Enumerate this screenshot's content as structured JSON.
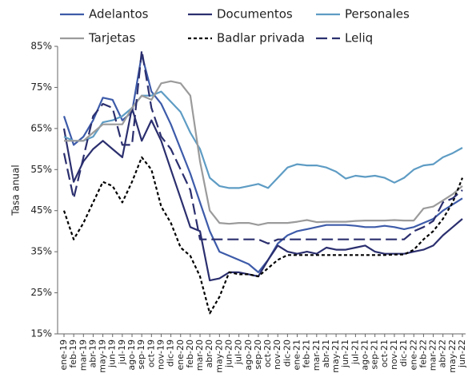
{
  "chart_data": {
    "type": "line",
    "y_label": "Tasa anual",
    "categories": [
      "ene-19",
      "feb-19",
      "mar-19",
      "abr-19",
      "may-19",
      "jun-19",
      "jul-19",
      "ago-19",
      "sep-19",
      "oct-19",
      "nov-19",
      "dic-19",
      "ene-20",
      "feb-20",
      "mar-20",
      "abr-20",
      "may-20",
      "jun-20",
      "jul-20",
      "ago-20",
      "sep-20",
      "oct-20",
      "nov-20",
      "dic-20",
      "ene-21",
      "feb-21",
      "mar-21",
      "abr-21",
      "may-21",
      "jun-21",
      "jul-21",
      "ago-21",
      "sep-21",
      "oct-21",
      "nov-21",
      "dic-21",
      "ene-22",
      "feb-22",
      "mar-22",
      "abr-22",
      "may-22",
      "jun-22"
    ],
    "series": [
      {
        "name": "Adelantos",
        "color": "#3d5ba9",
        "dash": "solid",
        "values": [
          68,
          61,
          63,
          67,
          72.5,
          72,
          67,
          69,
          83,
          74,
          71,
          66,
          60,
          54,
          47,
          40,
          35,
          34,
          33,
          32,
          30,
          33,
          37,
          39,
          40,
          40.5,
          41,
          41.5,
          41.5,
          41.5,
          41.3,
          41,
          41,
          41.3,
          41,
          40.5,
          41,
          42,
          43,
          45,
          46.5,
          48
        ]
      },
      {
        "name": "Documentos",
        "color": "#2b2f6e",
        "dash": "solid",
        "values": [
          65,
          52,
          57,
          60,
          62,
          60,
          58,
          70,
          62,
          67,
          62,
          55,
          48,
          41,
          40,
          28,
          28.5,
          30,
          30,
          29.5,
          29,
          33,
          36.5,
          35,
          34.5,
          35,
          34.5,
          36,
          35.5,
          35.5,
          36,
          36.5,
          35,
          34.5,
          34.5,
          34.5,
          35,
          35.5,
          36.5,
          39,
          41,
          43
        ]
      },
      {
        "name": "Personales",
        "color": "#5e9cc4",
        "dash": "solid",
        "values": [
          63,
          62,
          62,
          63,
          66.5,
          67,
          68,
          70,
          73,
          73,
          74,
          71.5,
          69,
          64,
          60,
          53,
          51,
          50.5,
          50.5,
          51,
          51.5,
          50.5,
          53,
          55.5,
          56.3,
          56,
          56,
          55.5,
          54.5,
          52.8,
          53.5,
          53.2,
          53.5,
          53,
          51.8,
          53,
          55,
          56,
          56.3,
          58,
          59,
          60.3
        ]
      },
      {
        "name": "Tarjetas",
        "color": "#9b9b9b",
        "dash": "solid",
        "values": [
          62,
          62,
          62,
          64,
          66,
          66,
          66,
          70,
          73,
          72,
          76,
          76.5,
          76,
          73,
          57,
          45,
          42,
          41.8,
          42,
          42,
          41.5,
          42,
          42,
          42,
          42.3,
          42.7,
          42.2,
          42.3,
          42.3,
          42.3,
          42.5,
          42.6,
          42.6,
          42.6,
          42.7,
          42.6,
          42.6,
          45.5,
          46,
          47.5,
          49,
          51
        ]
      },
      {
        "name": "Badlar privada",
        "color": "#000000",
        "dash": "short",
        "values": [
          45,
          38,
          42,
          47,
          52,
          51,
          47,
          52,
          58,
          55,
          46,
          42,
          36,
          34,
          29,
          20,
          24,
          30,
          29.5,
          29.5,
          29,
          31,
          33,
          34.2,
          34.2,
          34.2,
          34.2,
          34.2,
          34.2,
          34.2,
          34.2,
          34.2,
          34.2,
          34.2,
          34.3,
          34.3,
          35.5,
          38,
          40,
          43,
          47,
          53
        ]
      },
      {
        "name": "Leliq",
        "color": "#2b2f6e",
        "dash": "long",
        "values": [
          59,
          48,
          58,
          68,
          71,
          70,
          61,
          61,
          84,
          70,
          63,
          60,
          55,
          50,
          38,
          38,
          38,
          38,
          38,
          38,
          38,
          37,
          38,
          38,
          38,
          38,
          38,
          38,
          38,
          38,
          38,
          38,
          38,
          38,
          38,
          38,
          40,
          41,
          42.5,
          47,
          48,
          50
        ]
      }
    ],
    "ylim": [
      15,
      85
    ],
    "yticks": [
      {
        "value": 15,
        "label": "15%"
      },
      {
        "value": 25,
        "label": "25%"
      },
      {
        "value": 35,
        "label": "35%"
      },
      {
        "value": 45,
        "label": "45%"
      },
      {
        "value": 55,
        "label": "55%"
      },
      {
        "value": 65,
        "label": "65%"
      },
      {
        "value": 75,
        "label": "75%"
      },
      {
        "value": 85,
        "label": "85%"
      }
    ]
  }
}
